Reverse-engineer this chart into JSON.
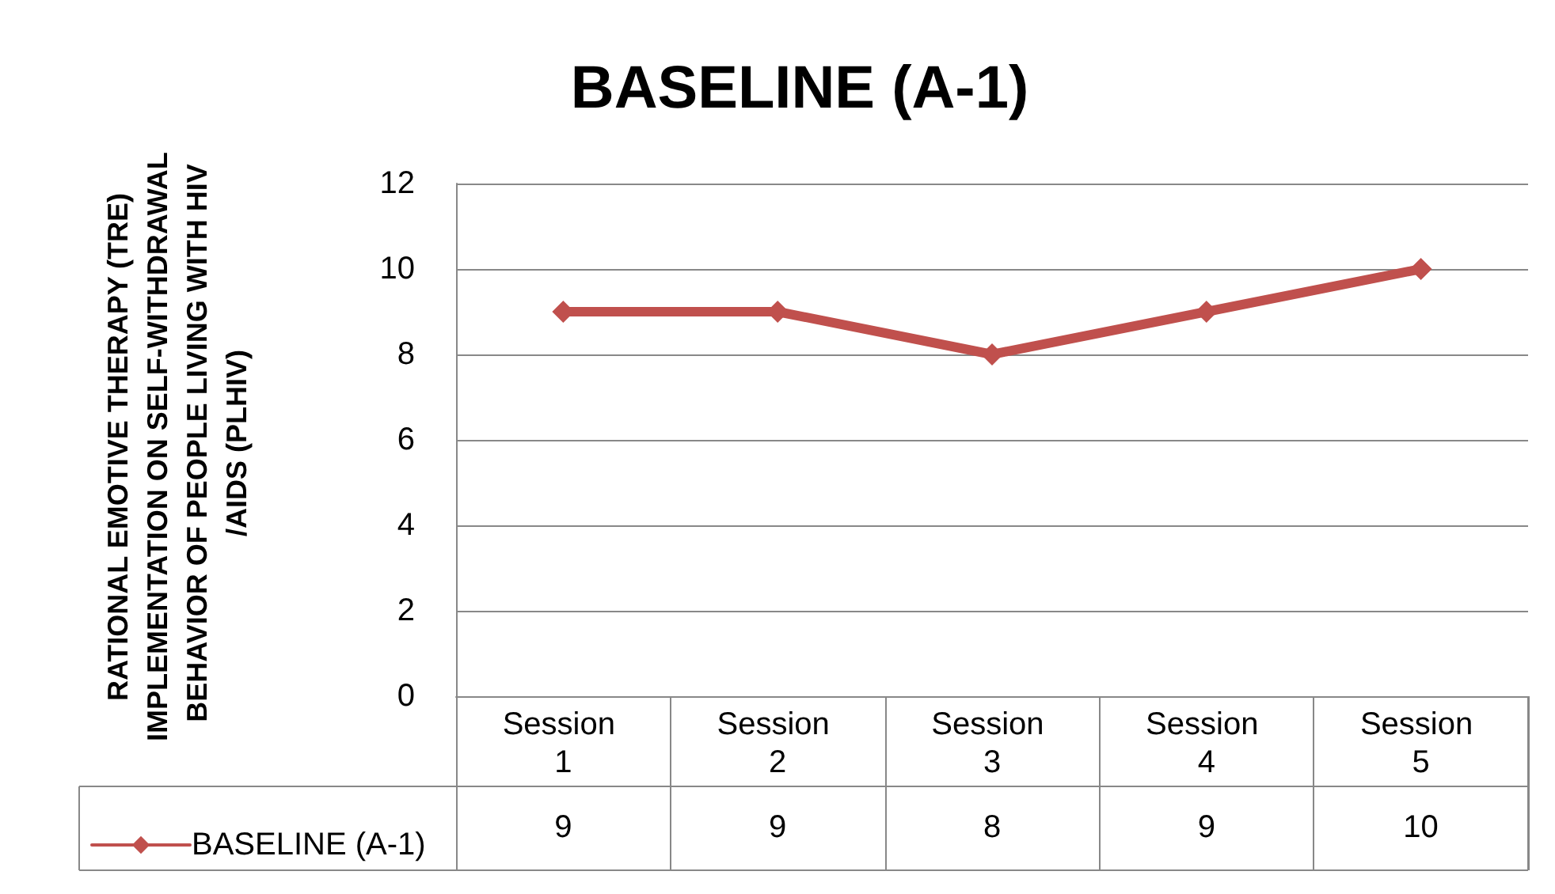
{
  "chart_data": {
    "type": "line",
    "title": "BASELINE (A-1)",
    "ylabel": "RATIONAL EMOTIVE THERAPY (TRE) IMPLEMENTATION ON SELF-WITHDRAWAL BEHAVIOR OF PEOPLE LIVING WITH HIV/AIDS (PLHIV)",
    "categories": [
      "Session 1",
      "Session 2",
      "Session 3",
      "Session 4",
      "Session 5"
    ],
    "series": [
      {
        "name": "BASELINE (A-1)",
        "color": "#c0504d",
        "values": [
          9,
          9,
          8,
          9,
          10
        ]
      }
    ],
    "ylim": [
      0,
      12
    ],
    "yticks": [
      0,
      2,
      4,
      6,
      8,
      10,
      12
    ],
    "grid": "y",
    "legend": "bottom left",
    "marker": "diamond",
    "line_style": "solid",
    "data_labels": true
  }
}
